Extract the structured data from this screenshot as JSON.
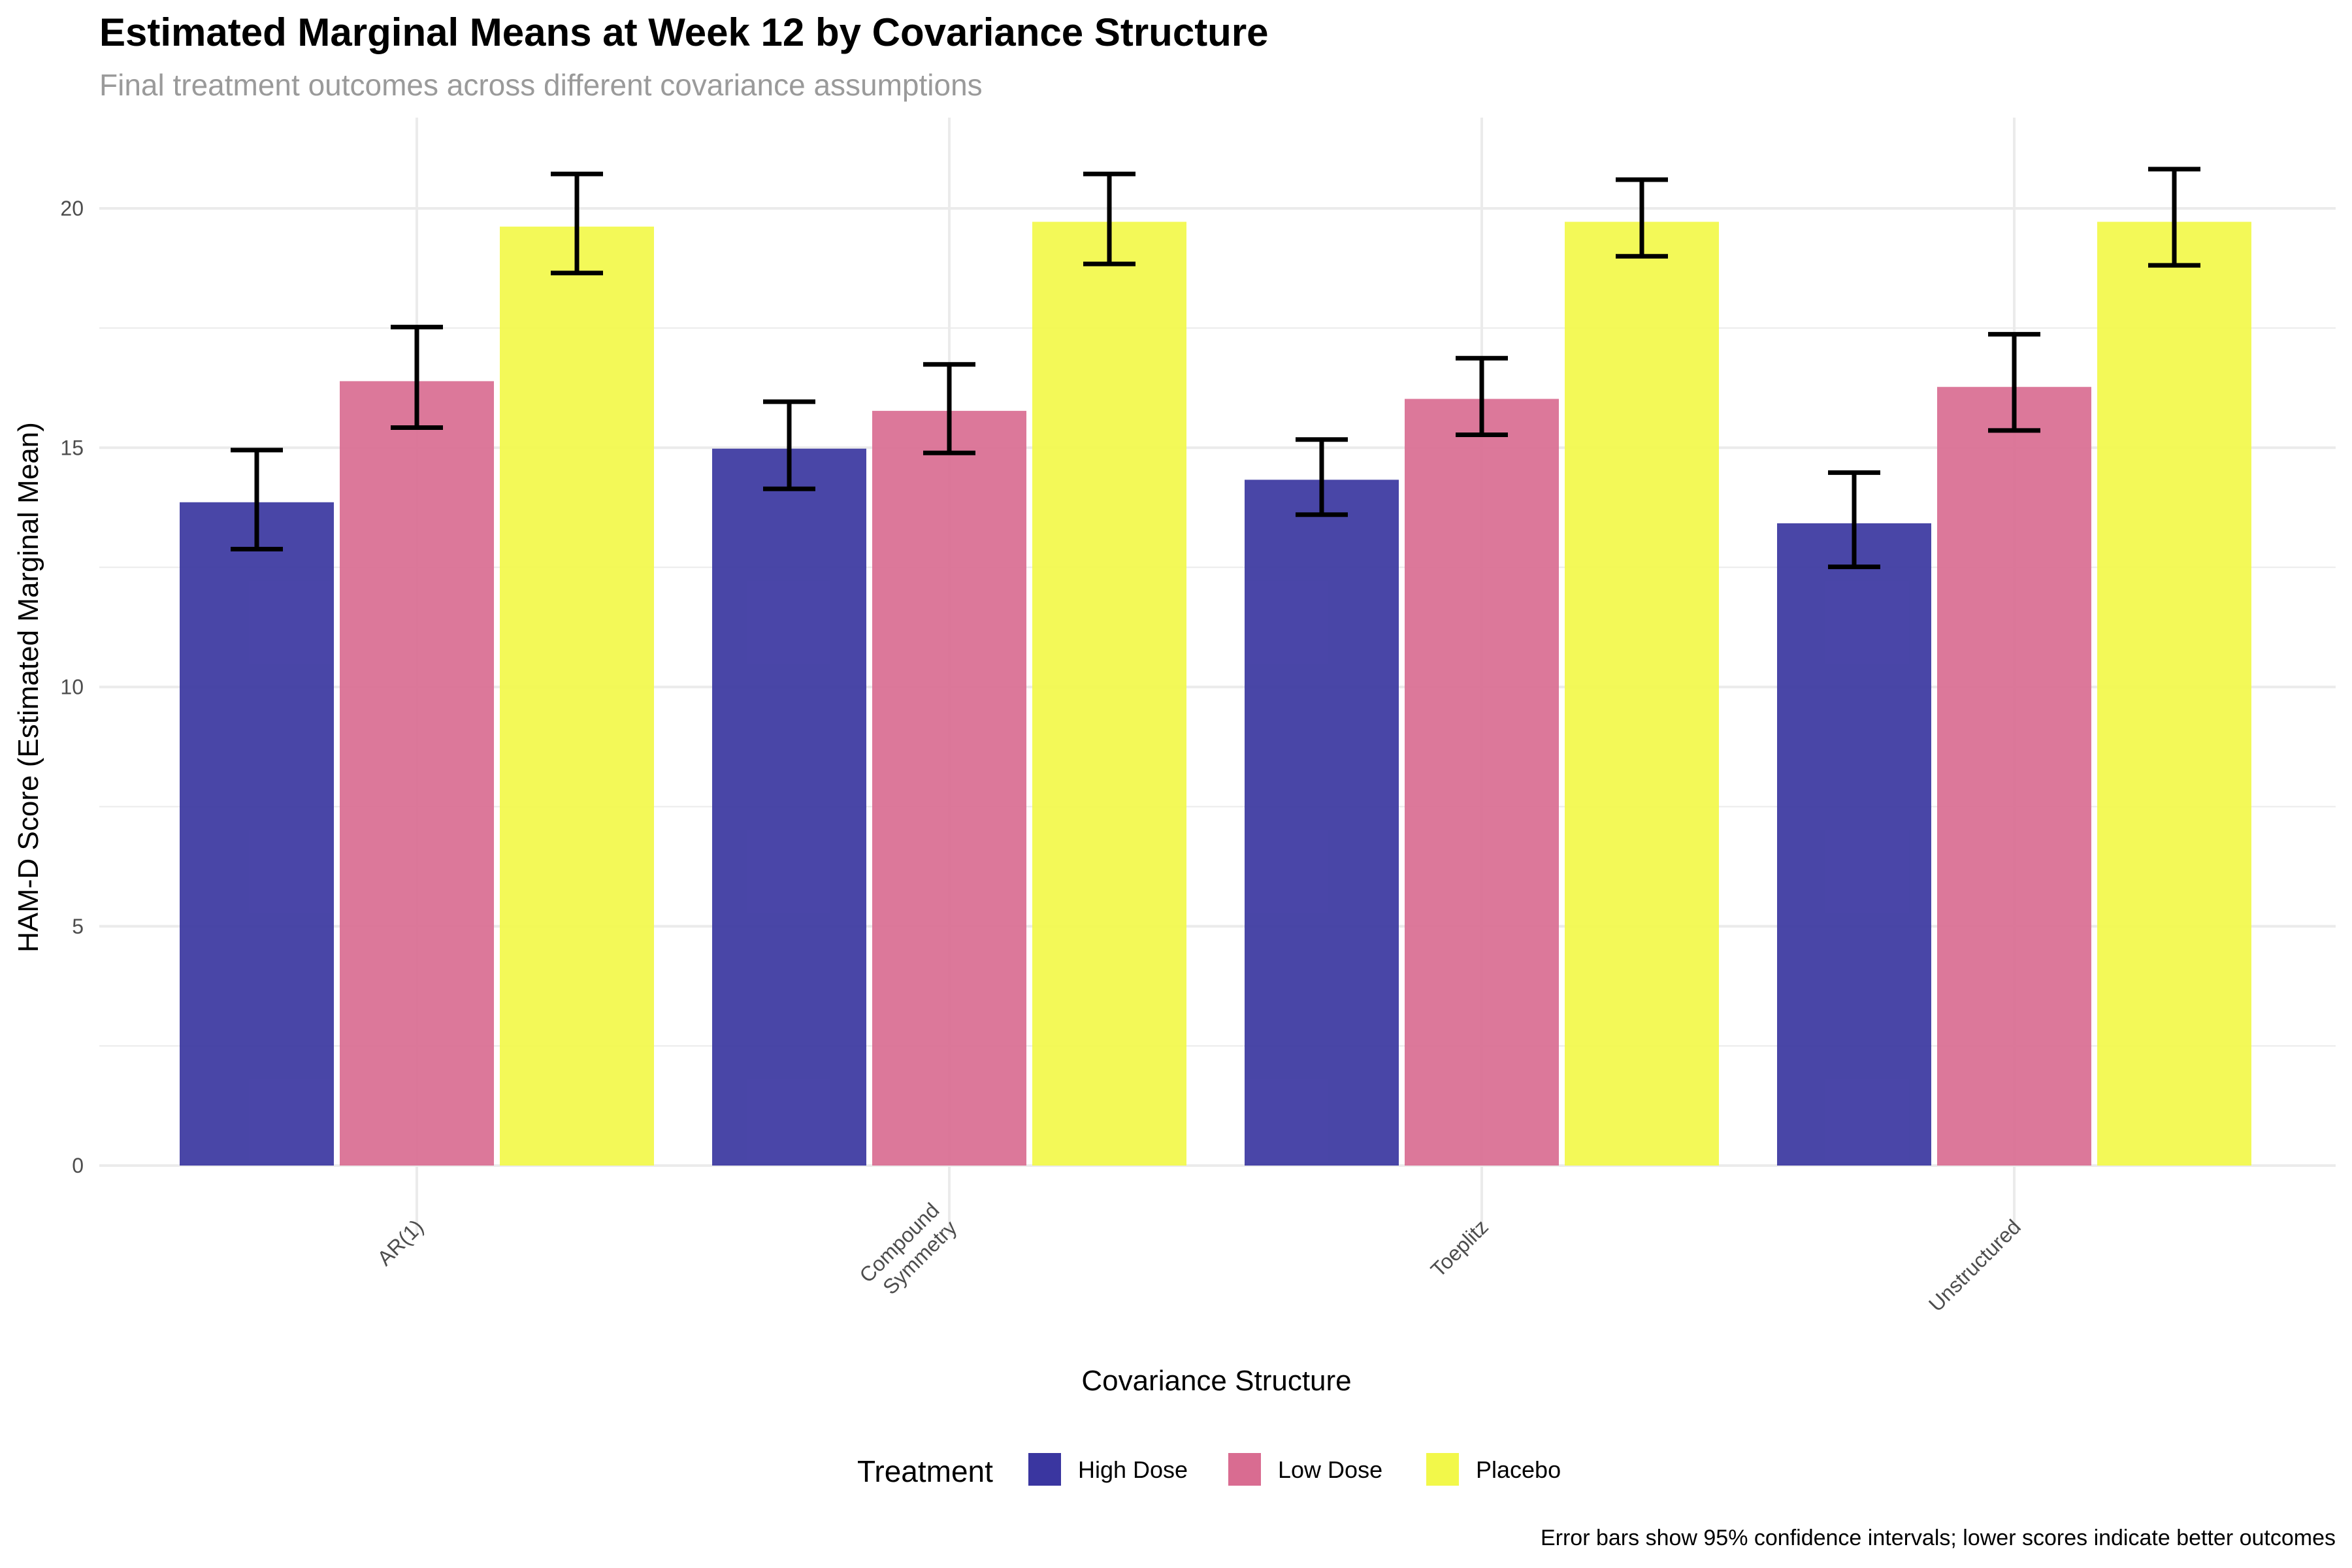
{
  "chart_data": {
    "type": "bar",
    "title": "Estimated Marginal Means at Week 12 by Covariance Structure",
    "subtitle": "Final treatment outcomes across different covariance assumptions",
    "xlabel": "Covariance Structure",
    "ylabel": "HAM-D Score (Estimated Marginal Mean)",
    "caption": "Error bars show 95% confidence intervals; lower scores indicate better outcomes",
    "categories": [
      "AR(1)",
      "Compound\nSymmetry",
      "Toeplitz",
      "Unstructured"
    ],
    "ylim": [
      0,
      21.5
    ],
    "yticks": [
      0,
      5,
      10,
      15,
      20
    ],
    "grid": true,
    "legend": {
      "title": "Treatment",
      "position": "bottom"
    },
    "series": [
      {
        "name": "High Dose",
        "color": "#3a36a0",
        "values": [
          13.86,
          14.98,
          14.33,
          13.42
        ],
        "ci_lower": [
          12.88,
          14.14,
          13.6,
          12.51
        ],
        "ci_upper": [
          14.95,
          15.96,
          15.17,
          14.48
        ]
      },
      {
        "name": "Low Dose",
        "color": "#d96c91",
        "values": [
          16.39,
          15.77,
          16.02,
          16.27
        ],
        "ci_lower": [
          15.42,
          14.89,
          15.27,
          15.36
        ],
        "ci_upper": [
          17.52,
          16.74,
          16.87,
          17.37
        ]
      },
      {
        "name": "Placebo",
        "color": "#f2f84a",
        "values": [
          19.62,
          19.72,
          19.72,
          19.72
        ],
        "ci_lower": [
          18.65,
          18.84,
          19.0,
          18.81
        ],
        "ci_upper": [
          20.72,
          20.72,
          20.6,
          20.82
        ]
      }
    ]
  }
}
